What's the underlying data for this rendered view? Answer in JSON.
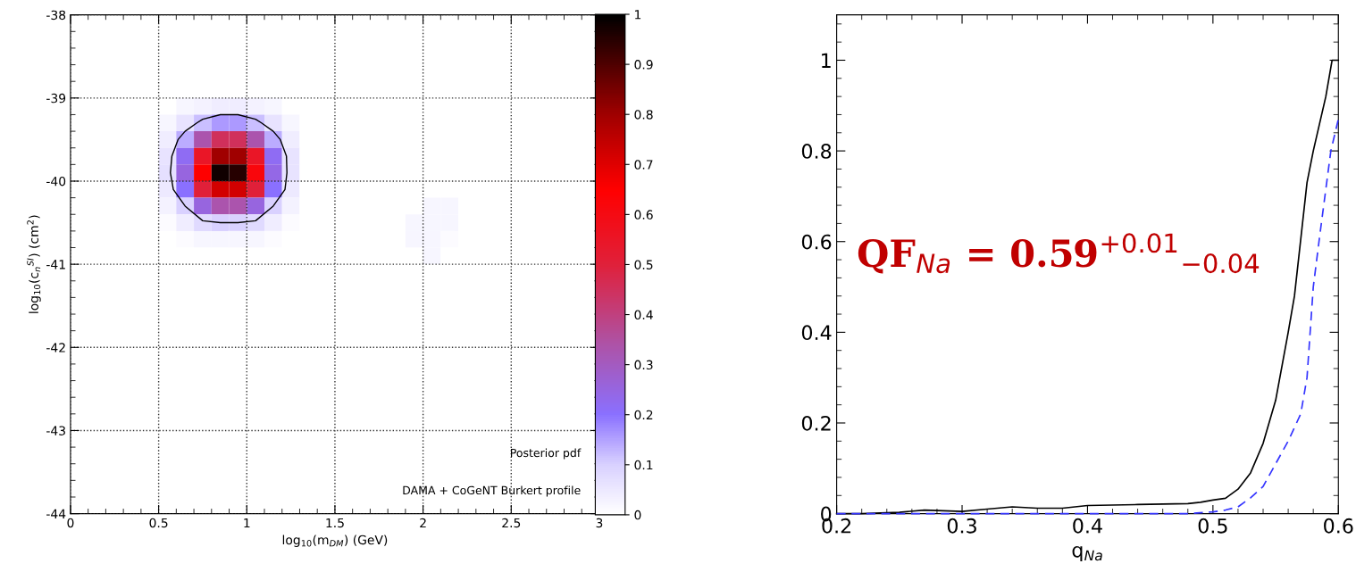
{
  "chart_data": [
    {
      "type": "heatmap",
      "xlabel": "log$_{10}$(m$_{DM}$) (GeV)",
      "ylabel": "log$_{10}$(c$_{n}$$^{SI}$) (cm$^{2}$)",
      "x": [
        0.55,
        0.65,
        0.75,
        0.85,
        0.95,
        1.05,
        1.15,
        1.25,
        1.35,
        1.45,
        1.55,
        1.65,
        1.75,
        1.85,
        1.95,
        2.05,
        2.15,
        2.25
      ],
      "y": [
        -39.1,
        -39.3,
        -39.5,
        -39.7,
        -39.9,
        -40.1,
        -40.3,
        -40.5,
        -40.7,
        -40.9
      ],
      "cells": [
        [
          0,
          0.02,
          0.03,
          0.04,
          0.04,
          0.03,
          0.02,
          0,
          0,
          0,
          0,
          0,
          0,
          0,
          0,
          0,
          0,
          0
        ],
        [
          0.02,
          0.06,
          0.12,
          0.16,
          0.16,
          0.12,
          0.06,
          0.02,
          0,
          0,
          0,
          0,
          0,
          0,
          0,
          0,
          0,
          0
        ],
        [
          0.04,
          0.14,
          0.33,
          0.45,
          0.45,
          0.33,
          0.14,
          0.04,
          0,
          0,
          0,
          0,
          0,
          0,
          0,
          0,
          0,
          0
        ],
        [
          0.06,
          0.22,
          0.55,
          0.8,
          0.8,
          0.55,
          0.22,
          0.06,
          0,
          0,
          0,
          0,
          0,
          0,
          0,
          0,
          0,
          0
        ],
        [
          0.07,
          0.25,
          0.65,
          0.98,
          0.95,
          0.62,
          0.24,
          0.06,
          0,
          0,
          0,
          0,
          0,
          0,
          0,
          0,
          0,
          0
        ],
        [
          0.05,
          0.2,
          0.5,
          0.72,
          0.72,
          0.5,
          0.2,
          0.05,
          0,
          0,
          0,
          0,
          0,
          0,
          0,
          0,
          0,
          0
        ],
        [
          0.03,
          0.1,
          0.25,
          0.33,
          0.33,
          0.25,
          0.1,
          0.03,
          0,
          0,
          0,
          0,
          0,
          0,
          0,
          0.02,
          0.02,
          0
        ],
        [
          0.01,
          0.04,
          0.08,
          0.1,
          0.1,
          0.08,
          0.04,
          0.01,
          0,
          0,
          0,
          0,
          0,
          0,
          0.02,
          0.02,
          0.02,
          0
        ],
        [
          0,
          0.01,
          0.02,
          0.02,
          0.02,
          0.02,
          0.01,
          0,
          0,
          0,
          0,
          0,
          0,
          0,
          0.02,
          0.02,
          0.01,
          0
        ],
        [
          0,
          0,
          0,
          0,
          0,
          0,
          0,
          0,
          0,
          0,
          0,
          0,
          0,
          0,
          0,
          0.02,
          0,
          0
        ]
      ],
      "clim": [
        0,
        1
      ],
      "cticks": [
        0,
        0.1,
        0.2,
        0.3,
        0.4,
        0.5,
        0.6,
        0.7,
        0.8,
        0.9,
        1
      ],
      "xlim": [
        0,
        3
      ],
      "xticks": [
        0,
        0.5,
        1,
        1.5,
        2,
        2.5,
        3
      ],
      "ylim": [
        -44,
        -38
      ],
      "yticks": [
        -44,
        -43,
        -42,
        -41,
        -40,
        -39,
        -38
      ],
      "grid": true,
      "annotations": [
        "Posterior pdf",
        "DAMA + CoGeNT Burkert profile"
      ]
    },
    {
      "type": "line",
      "xlabel": "q$_{Na}$",
      "series": [
        {
          "color": "#000000",
          "line_style": "solid",
          "x": [
            0.2,
            0.22,
            0.25,
            0.27,
            0.3,
            0.32,
            0.34,
            0.36,
            0.38,
            0.4,
            0.44,
            0.48,
            0.49,
            0.5,
            0.51,
            0.52,
            0.53,
            0.54,
            0.55,
            0.56,
            0.565,
            0.575,
            0.58,
            0.59,
            0.595,
            0.6
          ],
          "values": [
            0,
            0,
            0.003,
            0.008,
            0.005,
            0.01,
            0.015,
            0.012,
            0.012,
            0.018,
            0.02,
            0.022,
            0.025,
            0.03,
            0.034,
            0.054,
            0.09,
            0.155,
            0.25,
            0.4,
            0.48,
            0.73,
            0.8,
            0.92,
            1.0,
            1.0
          ]
        },
        {
          "color": "#3333ff",
          "line_style": "dashed",
          "x": [
            0.2,
            0.3,
            0.4,
            0.48,
            0.5,
            0.51,
            0.52,
            0.53,
            0.54,
            0.55,
            0.56,
            0.57,
            0.575,
            0.58,
            0.585,
            0.594,
            0.6
          ],
          "values": [
            0,
            0,
            0,
            0,
            0.004,
            0.008,
            0.015,
            0.035,
            0.06,
            0.11,
            0.16,
            0.22,
            0.3,
            0.5,
            0.61,
            0.8,
            0.87
          ]
        }
      ],
      "xlim": [
        0.2,
        0.6
      ],
      "xticks": [
        0.2,
        0.3,
        0.4,
        0.5,
        0.6
      ],
      "ylim": [
        0,
        1.1
      ],
      "yticks": [
        0,
        0.2,
        0.4,
        0.6,
        0.8,
        1
      ],
      "annotations": [
        "QF$_{Na}$ = 0.59$^{+0.01}$$_{−0.04}$"
      ]
    }
  ]
}
